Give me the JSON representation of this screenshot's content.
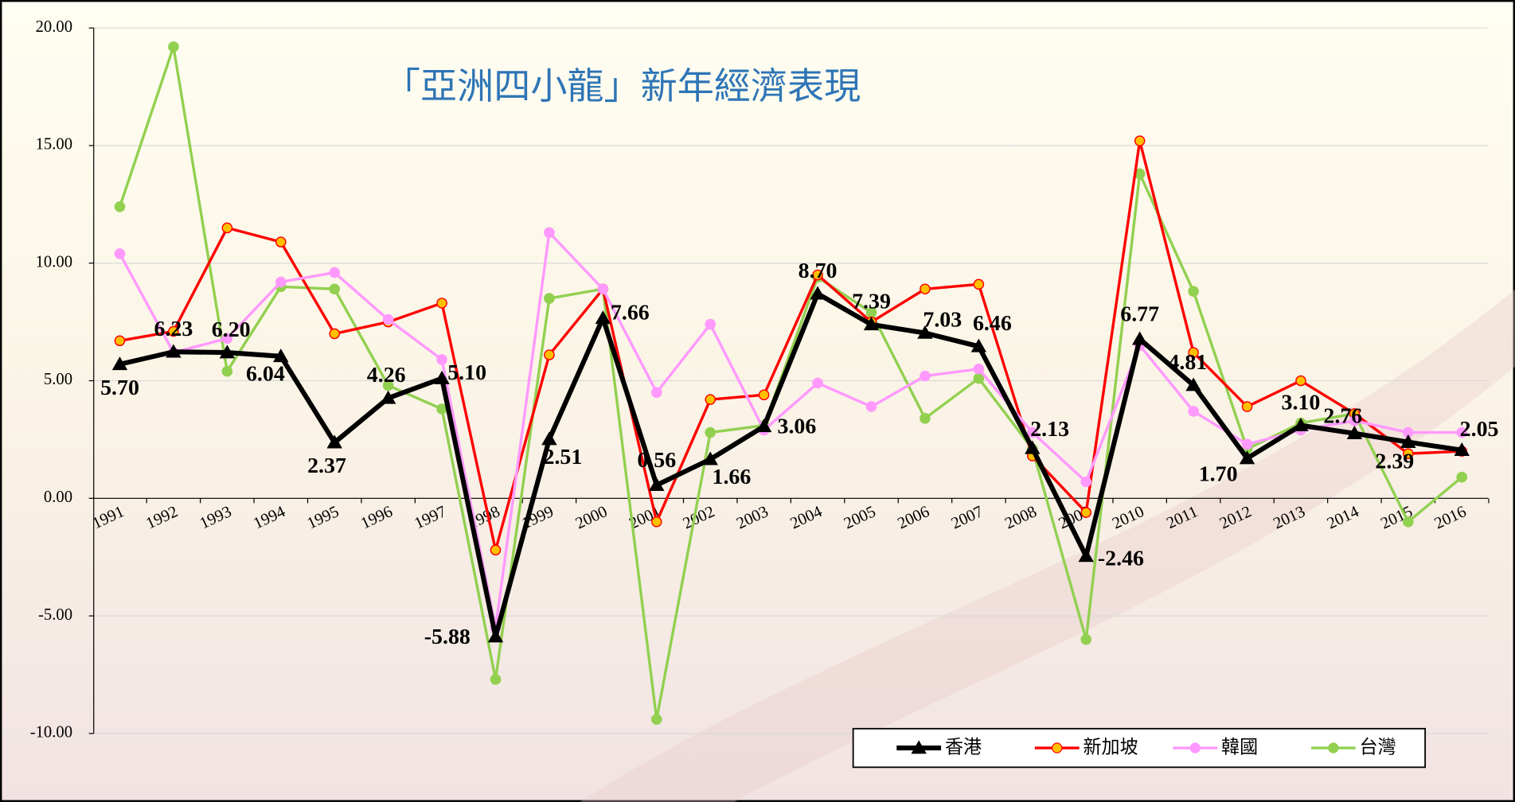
{
  "chart_data": {
    "type": "line",
    "title": "「亞洲四小龍」新年經濟表現",
    "categories": [
      "1991",
      "1992",
      "1993",
      "1994",
      "1995",
      "1996",
      "1997",
      "1998",
      "1999",
      "2000",
      "2001",
      "2002",
      "2003",
      "2004",
      "2005",
      "2006",
      "2007",
      "2008",
      "2009",
      "2010",
      "2011",
      "2012",
      "2013",
      "2014",
      "2015",
      "2016"
    ],
    "ylim": [
      -10,
      20
    ],
    "yticks": [
      {
        "value": -10,
        "label": "-10.00"
      },
      {
        "value": -5,
        "label": "-5.00"
      },
      {
        "value": 0,
        "label": "0.00"
      },
      {
        "value": 5,
        "label": "5.00"
      },
      {
        "value": 10,
        "label": "10.00"
      },
      {
        "value": 15,
        "label": "15.00"
      },
      {
        "value": 20,
        "label": "20.00"
      }
    ],
    "grid": true,
    "legend": "bottom-right",
    "series": [
      {
        "name": "香港",
        "color": "#000000",
        "marker": "triangle",
        "marker_color": "#000000",
        "values": [
          5.7,
          6.23,
          6.2,
          6.04,
          2.37,
          4.26,
          5.1,
          -5.88,
          2.51,
          7.66,
          0.56,
          1.66,
          3.06,
          8.7,
          7.39,
          7.03,
          6.46,
          2.13,
          -2.46,
          6.77,
          4.81,
          1.7,
          3.1,
          2.76,
          2.39,
          2.05
        ],
        "value_labels": [
          "5.70",
          "6.23",
          "6.20",
          "6.04",
          "2.37",
          "4.26",
          "5.10",
          "-5.88",
          "2.51",
          "7.66",
          "0.56",
          "1.66",
          "3.06",
          "8.70",
          "7.39",
          "7.03",
          "6.46",
          "2.13",
          "-2.46",
          "6.77",
          "4.81",
          "1.70",
          "3.10",
          "2.76",
          "2.39",
          "2.05"
        ]
      },
      {
        "name": "新加坡",
        "color": "#ff0000",
        "marker": "circle",
        "marker_color": "#ffc000",
        "values": [
          6.7,
          7.1,
          11.5,
          10.9,
          7.0,
          7.5,
          8.3,
          -2.2,
          6.1,
          8.9,
          -1.0,
          4.2,
          4.4,
          9.5,
          7.5,
          8.9,
          9.1,
          1.8,
          -0.6,
          15.2,
          6.2,
          3.9,
          5.0,
          3.6,
          1.9,
          2.0
        ]
      },
      {
        "name": "韓國",
        "color": "#ff99ff",
        "marker": "circle",
        "marker_color": "#ff99ff",
        "values": [
          10.4,
          6.2,
          6.8,
          9.2,
          9.6,
          7.6,
          5.9,
          -5.5,
          11.3,
          8.9,
          4.5,
          7.4,
          2.9,
          4.9,
          3.9,
          5.2,
          5.5,
          2.8,
          0.7,
          6.5,
          3.7,
          2.3,
          2.9,
          3.3,
          2.8,
          2.8
        ]
      },
      {
        "name": "台灣",
        "color": "#92d050",
        "marker": "circle",
        "marker_color": "#92d050",
        "values": [
          12.4,
          19.2,
          5.4,
          9.0,
          8.9,
          4.8,
          3.8,
          -7.7,
          8.5,
          8.9,
          -9.4,
          2.8,
          3.1,
          9.4,
          7.9,
          3.4,
          5.1,
          2.1,
          -6.0,
          13.8,
          8.8,
          2.1,
          3.2,
          3.6,
          -1.0,
          0.9
        ]
      }
    ]
  }
}
